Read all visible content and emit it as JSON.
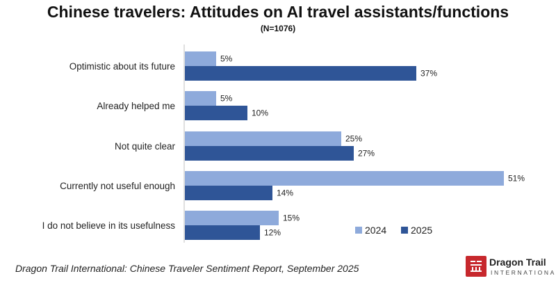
{
  "header": {
    "title": "Chinese travelers: Attitudes on AI travel assistants/functions",
    "subtitle": "(N=1076)"
  },
  "chart_data": {
    "type": "bar",
    "orientation": "horizontal",
    "categories": [
      "Optimistic about its future",
      "Already helped me",
      "Not quite clear",
      "Currently not useful enough",
      "I do not believe in its usefulness"
    ],
    "series": [
      {
        "name": "2024",
        "values": [
          5,
          5,
          25,
          51,
          15
        ],
        "labels": [
          "5%",
          "5%",
          "25%",
          "51%",
          "15%"
        ],
        "color": "#8eaadb"
      },
      {
        "name": "2025",
        "values": [
          37,
          10,
          27,
          14,
          12
        ],
        "labels": [
          "37%",
          "10%",
          "27%",
          "14%",
          "12%"
        ],
        "color": "#2f5597"
      }
    ],
    "title": "Chinese travelers: Attitudes on AI travel assistants/functions",
    "xlim": [
      0,
      60
    ],
    "grid": false,
    "legend": "bottom-right"
  },
  "footer": {
    "source": "Dragon Trail International: Chinese Traveler Sentiment Report, September 2025",
    "logo_name": "Dragon Trail",
    "logo_sub": "INTERNATIONAL",
    "logo_color": "#c7282d"
  }
}
